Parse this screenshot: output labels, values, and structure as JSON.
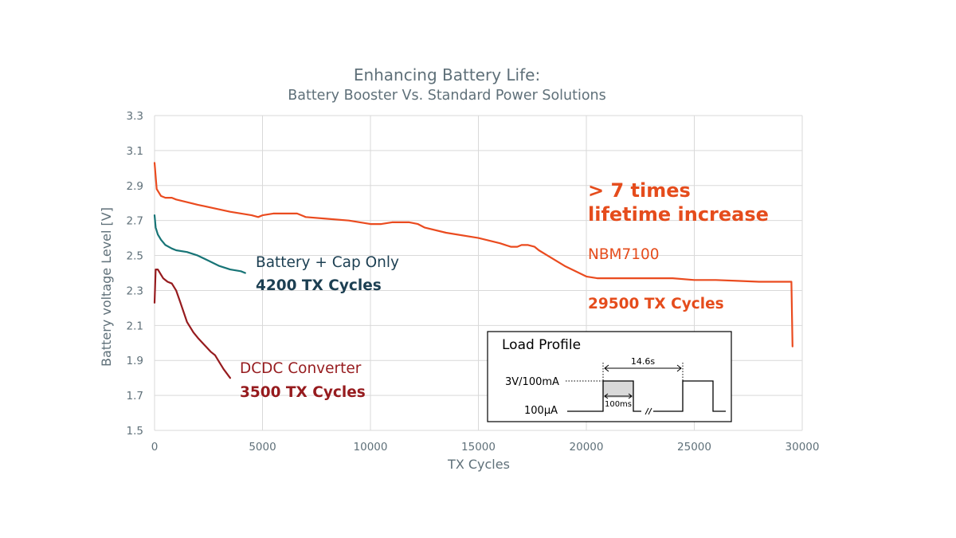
{
  "chart_data": {
    "type": "line",
    "title": "Enhancing Battery Life:",
    "subtitle": "Battery Booster Vs. Standard Power Solutions",
    "xlabel": "TX Cycles",
    "ylabel": "Battery voltage Level [V]",
    "xlim": [
      0,
      30000
    ],
    "ylim": [
      1.5,
      3.3
    ],
    "xticks": [
      "0",
      "5000",
      "10000",
      "15000",
      "20000",
      "25000",
      "30000"
    ],
    "yticks": [
      "1.5",
      "1.7",
      "1.9",
      "2.1",
      "2.3",
      "2.5",
      "2.7",
      "2.9",
      "3.1",
      "3.3"
    ],
    "grid": true,
    "series": [
      {
        "name": "NBM7100",
        "color": "#ea4b1f",
        "x": [
          0,
          100,
          300,
          500,
          800,
          1000,
          2000,
          3500,
          4500,
          4800,
          5000,
          5500,
          6000,
          6400,
          6600,
          7000,
          8000,
          9000,
          10000,
          10500,
          11000,
          11800,
          12200,
          12500,
          13500,
          15000,
          16000,
          16500,
          16800,
          17000,
          17300,
          17600,
          17800,
          18200,
          19000,
          20000,
          20500,
          22000,
          24000,
          25000,
          26000,
          27000,
          28000,
          29000,
          29500,
          29550
        ],
        "y": [
          3.03,
          2.88,
          2.84,
          2.83,
          2.83,
          2.82,
          2.79,
          2.75,
          2.73,
          2.72,
          2.73,
          2.74,
          2.74,
          2.74,
          2.74,
          2.72,
          2.71,
          2.7,
          2.68,
          2.68,
          2.69,
          2.69,
          2.68,
          2.66,
          2.63,
          2.6,
          2.57,
          2.55,
          2.55,
          2.56,
          2.56,
          2.55,
          2.53,
          2.5,
          2.44,
          2.38,
          2.37,
          2.37,
          2.37,
          2.36,
          2.36,
          2.355,
          2.35,
          2.35,
          2.35,
          1.98
        ]
      },
      {
        "name": "Battery + Cap Only",
        "color": "#177476",
        "x": [
          0,
          50,
          150,
          300,
          500,
          800,
          1000,
          1500,
          2000,
          2500,
          3000,
          3500,
          4000,
          4200
        ],
        "y": [
          2.73,
          2.66,
          2.62,
          2.59,
          2.56,
          2.54,
          2.53,
          2.52,
          2.5,
          2.47,
          2.44,
          2.42,
          2.41,
          2.4
        ]
      },
      {
        "name": "DCDC Converter",
        "color": "#961b1e",
        "x": [
          0,
          50,
          150,
          300,
          400,
          600,
          800,
          1000,
          1200,
          1500,
          1800,
          2000,
          2300,
          2600,
          2800,
          3000,
          3200,
          3500
        ],
        "y": [
          2.23,
          2.42,
          2.42,
          2.39,
          2.37,
          2.35,
          2.34,
          2.3,
          2.23,
          2.12,
          2.06,
          2.03,
          1.99,
          1.95,
          1.93,
          1.89,
          1.85,
          1.8
        ]
      }
    ],
    "annotations": {
      "headline_line1": "> 7 times",
      "headline_line2": "lifetime increase",
      "nbm_name": "NBM7100",
      "nbm_cycles": "29500 TX Cycles",
      "cap_name": "Battery + Cap Only",
      "cap_cycles": "4200 TX Cycles",
      "dcdc_name": "DCDC Converter",
      "dcdc_cycles": "3500 TX Cycles"
    },
    "load_profile": {
      "title": "Load Profile",
      "high_label": "3V/100mA",
      "low_label": "100µA",
      "period_label": "14.6s",
      "pulse_label": "100ms"
    }
  }
}
